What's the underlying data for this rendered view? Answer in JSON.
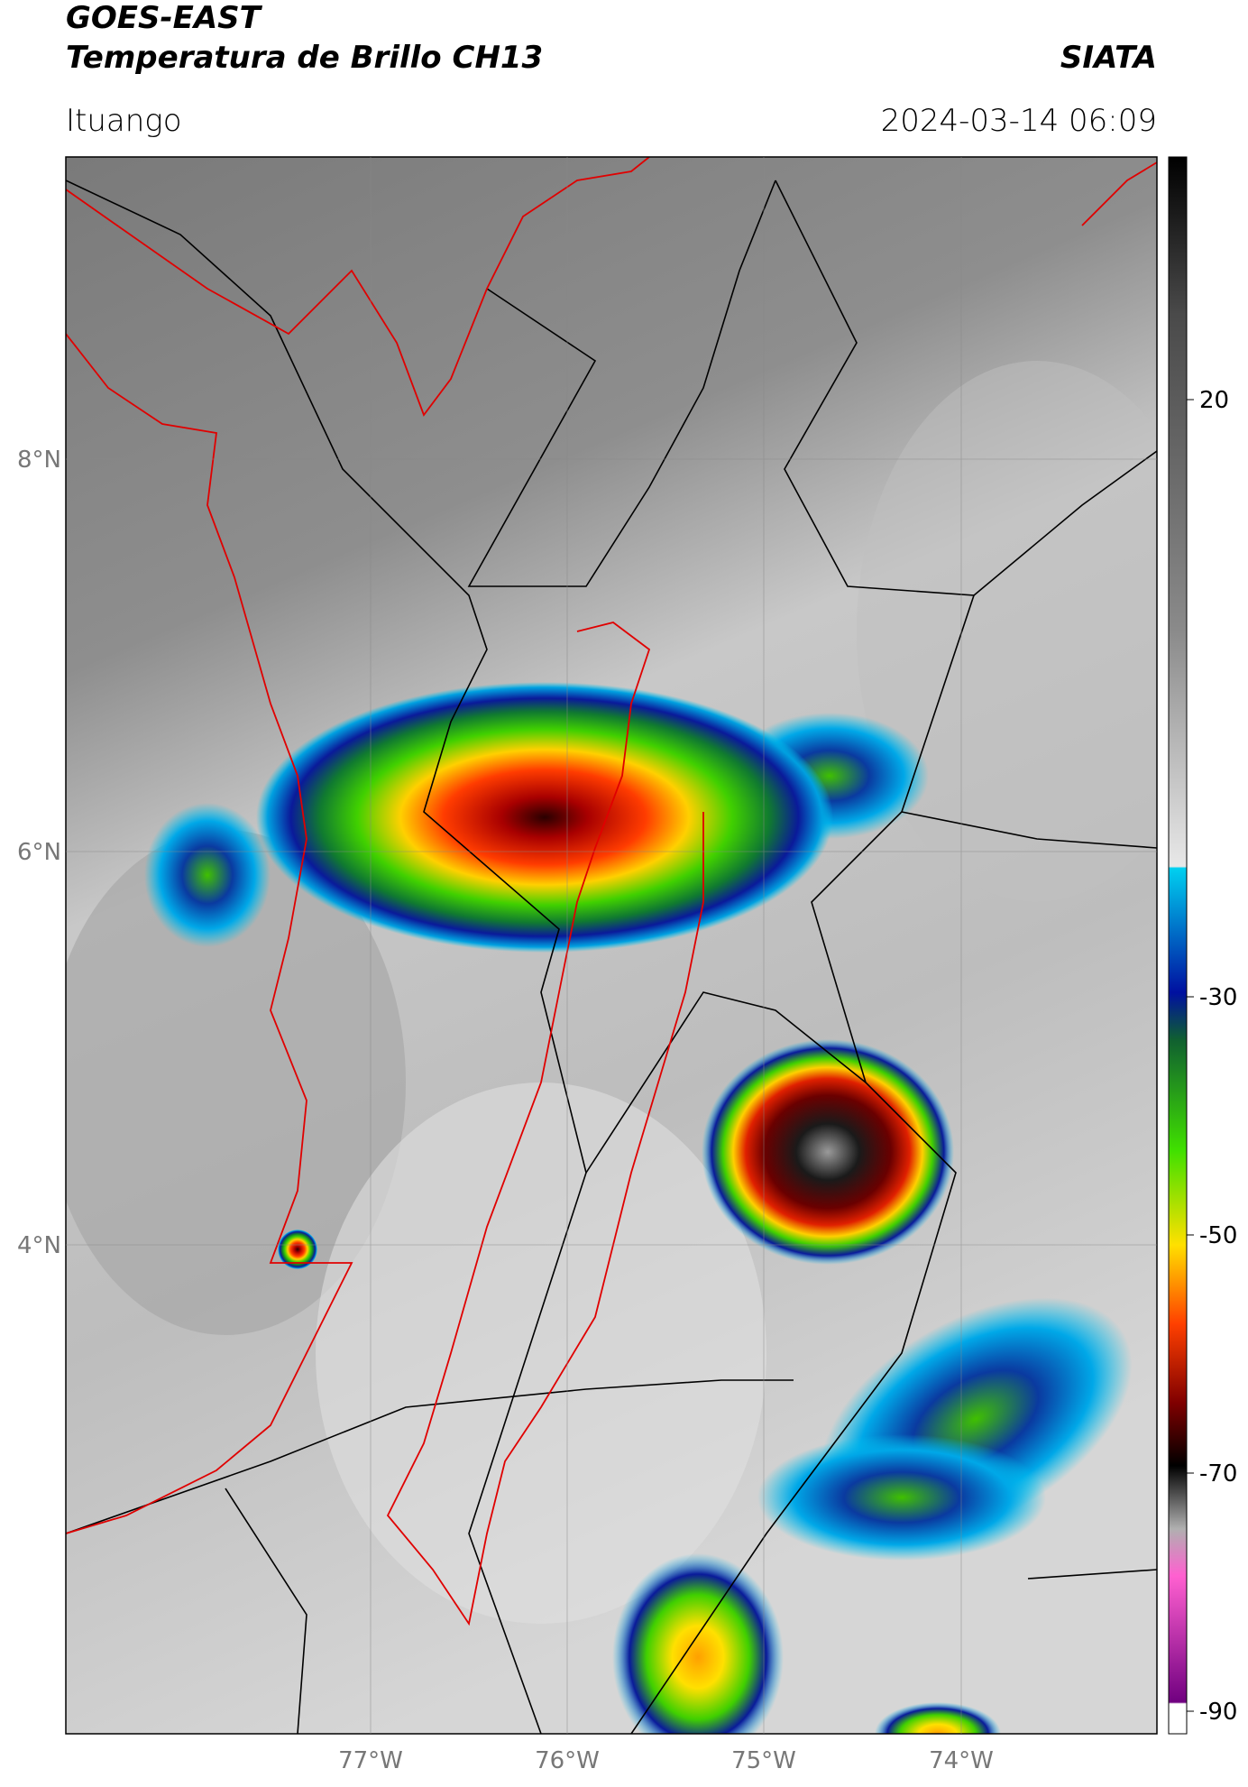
{
  "header": {
    "title_line1": "GOES-EAST",
    "title_line2": "Temperatura de Brillo CH13",
    "organization": "SIATA",
    "location": "Ituango",
    "datetime": "2024-03-14 06:09"
  },
  "map": {
    "lon_labels": [
      "77°W",
      "76°W",
      "75°W",
      "74°W"
    ],
    "lat_labels": [
      "8°N",
      "6°N",
      "4°N"
    ]
  },
  "colorbar": {
    "labels": [
      "20",
      "-30",
      "-50",
      "-70",
      "-90"
    ]
  }
}
